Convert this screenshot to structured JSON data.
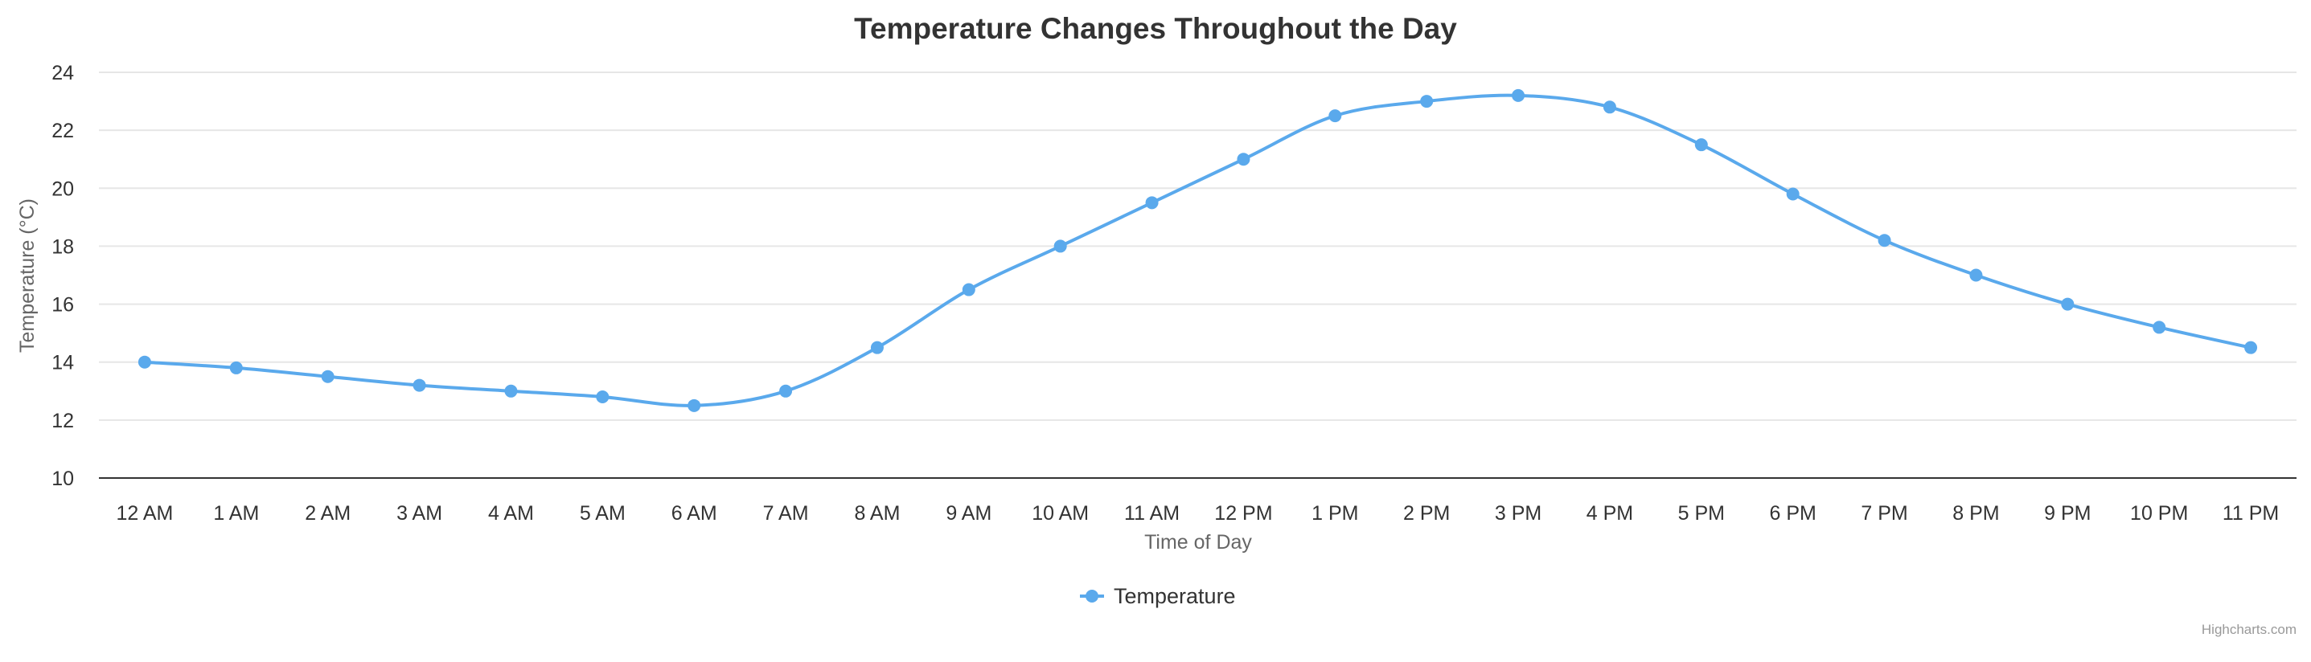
{
  "chart_data": {
    "type": "line",
    "title": "Temperature Changes Throughout the Day",
    "xlabel": "Time of Day",
    "ylabel": "Temperature (°C)",
    "categories": [
      "12 AM",
      "1 AM",
      "2 AM",
      "3 AM",
      "4 AM",
      "5 AM",
      "6 AM",
      "7 AM",
      "8 AM",
      "9 AM",
      "10 AM",
      "11 AM",
      "12 PM",
      "1 PM",
      "2 PM",
      "3 PM",
      "4 PM",
      "5 PM",
      "6 PM",
      "7 PM",
      "8 PM",
      "9 PM",
      "10 PM",
      "11 PM"
    ],
    "ylim": [
      10,
      24
    ],
    "yticks": [
      "10",
      "12",
      "14",
      "16",
      "18",
      "20",
      "22",
      "24"
    ],
    "grid": true,
    "legend": "bottom-center",
    "smooth": true,
    "series": [
      {
        "name": "Temperature",
        "color": "#5aa9ec",
        "values": [
          14.0,
          13.8,
          13.5,
          13.2,
          13.0,
          12.8,
          12.5,
          13.0,
          14.5,
          16.5,
          18.0,
          19.5,
          21.0,
          22.5,
          23.0,
          23.2,
          22.8,
          21.5,
          19.8,
          18.2,
          17.0,
          16.0,
          15.2,
          14.5
        ]
      }
    ]
  },
  "credits": "Highcharts.com"
}
